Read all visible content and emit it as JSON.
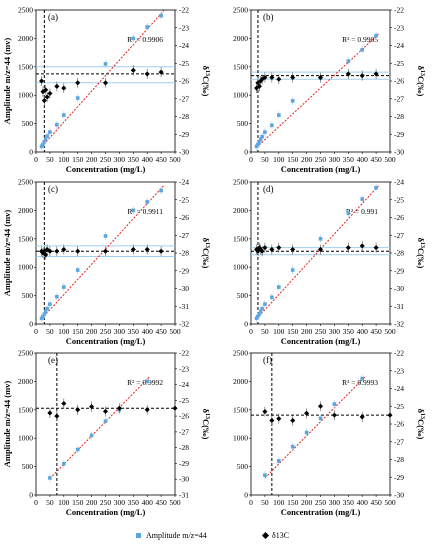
{
  "legend": {
    "amp_label": "Amplitude m/z=44",
    "iso_label": "δ13C",
    "amp_color": "#5aa6df",
    "iso_color": "#000000",
    "fit_color": "#e8211d",
    "band_color": "#9fd0ee"
  },
  "chart_data": [
    {
      "type": "scatter",
      "panel_label": "(a)",
      "r2_label": "R² = 0.9906",
      "xlabel": "Concentration (mg/L)",
      "ylabel": "Amplitude m/z=44 (mv)",
      "y2label": "δ13C(‰)",
      "xlim": [
        0,
        500
      ],
      "xticks": [
        0,
        50,
        100,
        150,
        200,
        250,
        300,
        350,
        400,
        450,
        500
      ],
      "ylim": [
        0,
        2500
      ],
      "yticks": [
        0,
        500,
        1000,
        1500,
        2000,
        2500
      ],
      "y2lim": [
        -30,
        -22
      ],
      "y2ticks": [
        -30,
        -29,
        -28,
        -27,
        -26,
        -25,
        -24,
        -23,
        -22
      ],
      "y2_reversed": true,
      "vline_x": 30,
      "mean_line": -25.6,
      "band": [
        -25.2,
        -26.1
      ],
      "series": [
        {
          "name": "Amplitude m/z=44",
          "axis": "left",
          "x": [
            20,
            25,
            30,
            35,
            40,
            50,
            75,
            100,
            150,
            250,
            350,
            400,
            450
          ],
          "y": [
            100,
            130,
            180,
            230,
            280,
            350,
            480,
            650,
            950,
            1550,
            2000,
            2200,
            2400
          ]
        },
        {
          "name": "δ13C",
          "axis": "right",
          "x": [
            20,
            25,
            30,
            35,
            40,
            50,
            75,
            100,
            150,
            250,
            350,
            400,
            450
          ],
          "y": [
            -26.0,
            -26.6,
            -27.1,
            -26.5,
            -26.9,
            -26.7,
            -26.3,
            -26.4,
            -26.1,
            -26.1,
            -25.4,
            -25.6,
            -25.5
          ]
        }
      ],
      "fit": {
        "x": [
          20,
          460
        ],
        "y": [
          90,
          2490
        ]
      }
    },
    {
      "type": "scatter",
      "panel_label": "(b)",
      "r2_label": "R² = 0.9905",
      "xlabel": "Concentration (mg/L)",
      "ylabel": "",
      "y2label": "δ13C(‰)",
      "xlim": [
        0,
        500
      ],
      "xticks": [
        0,
        50,
        100,
        150,
        200,
        250,
        300,
        350,
        400,
        450,
        500
      ],
      "ylim": [
        0,
        2500
      ],
      "yticks": [
        0,
        500,
        1000,
        1500,
        2000,
        2500
      ],
      "y2lim": [
        -30,
        -22
      ],
      "y2ticks": [
        -30,
        -29,
        -28,
        -27,
        -26,
        -25,
        -24,
        -23,
        -22
      ],
      "y2_reversed": true,
      "vline_x": 25,
      "mean_line": -25.7,
      "band": [
        -25.5,
        -25.9
      ],
      "series": [
        {
          "name": "Amplitude m/z=44",
          "axis": "left",
          "x": [
            20,
            25,
            30,
            35,
            40,
            50,
            75,
            100,
            150,
            250,
            350,
            400,
            450
          ],
          "y": [
            100,
            130,
            170,
            220,
            270,
            350,
            470,
            650,
            900,
            1300,
            1600,
            1800,
            2050
          ]
        },
        {
          "name": "δ13C",
          "axis": "right",
          "x": [
            20,
            25,
            30,
            35,
            40,
            50,
            75,
            100,
            150,
            250,
            350,
            400,
            450
          ],
          "y": [
            -26.4,
            -26.1,
            -26.3,
            -26.0,
            -25.9,
            -25.8,
            -25.8,
            -25.9,
            -25.8,
            -25.8,
            -25.6,
            -25.7,
            -25.6
          ]
        }
      ],
      "fit": {
        "x": [
          20,
          460
        ],
        "y": [
          80,
          2080
        ]
      }
    },
    {
      "type": "scatter",
      "panel_label": "(c)",
      "r2_label": "R² = 0.9911",
      "xlabel": "Concentration (mg/L)",
      "ylabel": "Amplitude m/z=44 (mv)",
      "y2label": "δ13C(‰)",
      "xlim": [
        0,
        500
      ],
      "xticks": [
        0,
        50,
        100,
        150,
        200,
        250,
        300,
        350,
        400,
        450,
        500
      ],
      "ylim": [
        0,
        2500
      ],
      "yticks": [
        0,
        500,
        1000,
        1500,
        2000,
        2500
      ],
      "y2lim": [
        -32,
        -24
      ],
      "y2ticks": [
        -32,
        -31,
        -30,
        -29,
        -28,
        -27,
        -26,
        -25,
        -24
      ],
      "y2_reversed": true,
      "vline_x": 30,
      "mean_line": -27.9,
      "band": [
        -27.6,
        -28.2
      ],
      "series": [
        {
          "name": "Amplitude m/z=44",
          "axis": "left",
          "x": [
            20,
            25,
            30,
            35,
            40,
            50,
            75,
            100,
            150,
            250,
            350,
            400,
            450
          ],
          "y": [
            100,
            130,
            170,
            220,
            270,
            350,
            480,
            650,
            950,
            1550,
            2000,
            2150,
            2350
          ]
        },
        {
          "name": "δ13C",
          "axis": "right",
          "x": [
            20,
            25,
            30,
            35,
            40,
            50,
            75,
            100,
            150,
            250,
            350,
            400,
            450
          ],
          "y": [
            -27.9,
            -28.0,
            -27.9,
            -28.1,
            -27.8,
            -27.9,
            -27.9,
            -27.8,
            -27.9,
            -27.9,
            -27.8,
            -27.8,
            -27.9
          ]
        }
      ],
      "fit": {
        "x": [
          20,
          460
        ],
        "y": [
          90,
          2440
        ]
      }
    },
    {
      "type": "scatter",
      "panel_label": "(d)",
      "r2_label": "R² = 0.991",
      "xlabel": "Concentration (mg/L)",
      "ylabel": "",
      "y2label": "δ13C(‰)",
      "xlim": [
        0,
        500
      ],
      "xticks": [
        0,
        50,
        100,
        150,
        200,
        250,
        300,
        350,
        400,
        450,
        500
      ],
      "ylim": [
        0,
        2500
      ],
      "yticks": [
        0,
        500,
        1000,
        1500,
        2000,
        2500
      ],
      "y2lim": [
        -32,
        -24
      ],
      "y2ticks": [
        -32,
        -31,
        -30,
        -29,
        -28,
        -27,
        -26,
        -25,
        -24
      ],
      "y2_reversed": true,
      "vline_x": 25,
      "mean_line": -27.9,
      "band": [
        -27.7,
        -28.1
      ],
      "series": [
        {
          "name": "Amplitude m/z=44",
          "axis": "left",
          "x": [
            20,
            25,
            30,
            35,
            40,
            50,
            75,
            100,
            150,
            250,
            350,
            400,
            450
          ],
          "y": [
            100,
            130,
            170,
            220,
            270,
            350,
            470,
            650,
            950,
            1500,
            1950,
            2200,
            2400
          ]
        },
        {
          "name": "δ13C",
          "axis": "right",
          "x": [
            20,
            25,
            30,
            35,
            40,
            50,
            75,
            100,
            150,
            250,
            350,
            400,
            450
          ],
          "y": [
            -27.8,
            -27.9,
            -27.7,
            -27.8,
            -27.9,
            -27.7,
            -27.8,
            -27.7,
            -27.8,
            -27.8,
            -27.7,
            -27.6,
            -27.7
          ]
        }
      ],
      "fit": {
        "x": [
          20,
          460
        ],
        "y": [
          90,
          2440
        ]
      }
    },
    {
      "type": "scatter",
      "panel_label": "(e)",
      "r2_label": "R² = 0.9992",
      "xlabel": "Concentration (mg/L)",
      "ylabel": "Amplitude m/z=44 (mv)",
      "y2label": "δ13C(‰)",
      "xlim": [
        0,
        500
      ],
      "xticks": [
        0,
        50,
        100,
        150,
        200,
        250,
        300,
        350,
        400,
        450,
        500
      ],
      "ylim": [
        0,
        2500
      ],
      "yticks": [
        0,
        500,
        1000,
        1500,
        2000,
        2500
      ],
      "y2lim": [
        -31,
        -22
      ],
      "y2ticks": [
        -31,
        -30,
        -29,
        -28,
        -27,
        -26,
        -25,
        -24,
        -23,
        -22
      ],
      "y2_reversed": true,
      "vline_x": 75,
      "mean_line": -25.5,
      "band": null,
      "series": [
        {
          "name": "Amplitude m/z=44",
          "axis": "left",
          "x": [
            50,
            100,
            150,
            200,
            250,
            300,
            400
          ],
          "y": [
            300,
            550,
            800,
            1050,
            1300,
            1500,
            2000
          ]
        },
        {
          "name": "δ13C",
          "axis": "right",
          "x": [
            50,
            75,
            100,
            150,
            200,
            250,
            300,
            400,
            500
          ],
          "y": [
            -25.8,
            -26.0,
            -25.2,
            -25.6,
            -25.4,
            -25.7,
            -25.5,
            -25.6,
            -25.5
          ]
        }
      ],
      "fit": {
        "x": [
          50,
          410
        ],
        "y": [
          290,
          2090
        ]
      }
    },
    {
      "type": "scatter",
      "panel_label": "(f)",
      "r2_label": "R² = 0.9993",
      "xlabel": "Concentration (mg/L)",
      "ylabel": "",
      "y2label": "δ13C(‰)",
      "xlim": [
        0,
        500
      ],
      "xticks": [
        0,
        50,
        100,
        150,
        200,
        250,
        300,
        350,
        400,
        450,
        500
      ],
      "ylim": [
        0,
        2500
      ],
      "yticks": [
        0,
        500,
        1000,
        1500,
        2000,
        2500
      ],
      "y2lim": [
        -30,
        -22
      ],
      "y2ticks": [
        -30,
        -29,
        -28,
        -27,
        -26,
        -25,
        -24,
        -23,
        -22
      ],
      "y2_reversed": true,
      "vline_x": 75,
      "mean_line": -25.5,
      "band": null,
      "series": [
        {
          "name": "Amplitude m/z=44",
          "axis": "left",
          "x": [
            50,
            100,
            150,
            200,
            250,
            300,
            400
          ],
          "y": [
            350,
            600,
            850,
            1100,
            1350,
            1600,
            2050
          ]
        },
        {
          "name": "δ13C",
          "axis": "right",
          "x": [
            50,
            75,
            100,
            150,
            200,
            250,
            300,
            400,
            500
          ],
          "y": [
            -25.3,
            -25.8,
            -25.7,
            -25.8,
            -25.4,
            -25.0,
            -25.5,
            -25.6,
            -25.5
          ]
        }
      ],
      "fit": {
        "x": [
          50,
          410
        ],
        "y": [
          300,
          2080
        ]
      }
    }
  ]
}
